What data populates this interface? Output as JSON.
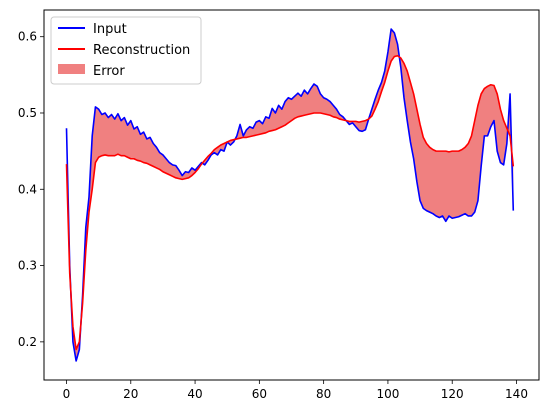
{
  "chart_data": {
    "type": "area",
    "title": "",
    "xlabel": "",
    "ylabel": "",
    "xlim": [
      -7,
      147
    ],
    "ylim": [
      0.15,
      0.635
    ],
    "xticks": [
      0,
      20,
      40,
      60,
      80,
      100,
      120,
      140
    ],
    "yticks": [
      0.2,
      0.3,
      0.4,
      0.5,
      0.6
    ],
    "x": [
      0,
      1,
      2,
      3,
      4,
      5,
      6,
      7,
      8,
      9,
      10,
      11,
      12,
      13,
      14,
      15,
      16,
      17,
      18,
      19,
      20,
      21,
      22,
      23,
      24,
      25,
      26,
      27,
      28,
      29,
      30,
      31,
      32,
      33,
      34,
      35,
      36,
      37,
      38,
      39,
      40,
      41,
      42,
      43,
      44,
      45,
      46,
      47,
      48,
      49,
      50,
      51,
      52,
      53,
      54,
      55,
      56,
      57,
      58,
      59,
      60,
      61,
      62,
      63,
      64,
      65,
      66,
      67,
      68,
      69,
      70,
      71,
      72,
      73,
      74,
      75,
      76,
      77,
      78,
      79,
      80,
      81,
      82,
      83,
      84,
      85,
      86,
      87,
      88,
      89,
      90,
      91,
      92,
      93,
      94,
      95,
      96,
      97,
      98,
      99,
      100,
      101,
      102,
      103,
      104,
      105,
      106,
      107,
      108,
      109,
      110,
      111,
      112,
      113,
      114,
      115,
      116,
      117,
      118,
      119,
      120,
      121,
      122,
      123,
      124,
      125,
      126,
      127,
      128,
      129,
      130,
      131,
      132,
      133,
      134,
      135,
      136,
      137,
      138,
      139
    ],
    "series": [
      {
        "name": "Input",
        "color": "#0000ff",
        "values": [
          0.48,
          0.3,
          0.2,
          0.175,
          0.19,
          0.26,
          0.35,
          0.39,
          0.47,
          0.508,
          0.505,
          0.498,
          0.5,
          0.494,
          0.498,
          0.492,
          0.499,
          0.49,
          0.494,
          0.484,
          0.49,
          0.479,
          0.482,
          0.472,
          0.475,
          0.466,
          0.468,
          0.46,
          0.455,
          0.448,
          0.445,
          0.44,
          0.435,
          0.432,
          0.431,
          0.425,
          0.418,
          0.423,
          0.422,
          0.428,
          0.425,
          0.43,
          0.435,
          0.432,
          0.438,
          0.445,
          0.448,
          0.445,
          0.452,
          0.45,
          0.462,
          0.458,
          0.462,
          0.47,
          0.485,
          0.47,
          0.478,
          0.482,
          0.48,
          0.488,
          0.49,
          0.486,
          0.495,
          0.493,
          0.506,
          0.5,
          0.51,
          0.505,
          0.515,
          0.52,
          0.518,
          0.522,
          0.526,
          0.522,
          0.53,
          0.525,
          0.532,
          0.538,
          0.535,
          0.525,
          0.52,
          0.518,
          0.515,
          0.51,
          0.505,
          0.498,
          0.495,
          0.49,
          0.485,
          0.487,
          0.482,
          0.477,
          0.476,
          0.478,
          0.492,
          0.505,
          0.518,
          0.53,
          0.54,
          0.555,
          0.58,
          0.61,
          0.605,
          0.59,
          0.56,
          0.52,
          0.49,
          0.462,
          0.44,
          0.41,
          0.385,
          0.375,
          0.372,
          0.37,
          0.368,
          0.365,
          0.363,
          0.365,
          0.358,
          0.365,
          0.362,
          0.363,
          0.364,
          0.366,
          0.368,
          0.365,
          0.365,
          0.37,
          0.385,
          0.43,
          0.47,
          0.47,
          0.482,
          0.49,
          0.45,
          0.435,
          0.432,
          0.46,
          0.525,
          0.372
        ]
      },
      {
        "name": "Reconstruction",
        "color": "#ff0000",
        "values": [
          0.433,
          0.29,
          0.22,
          0.19,
          0.2,
          0.25,
          0.32,
          0.37,
          0.4,
          0.435,
          0.442,
          0.444,
          0.445,
          0.444,
          0.444,
          0.444,
          0.446,
          0.444,
          0.444,
          0.442,
          0.44,
          0.44,
          0.438,
          0.437,
          0.435,
          0.434,
          0.432,
          0.43,
          0.428,
          0.426,
          0.423,
          0.421,
          0.419,
          0.417,
          0.415,
          0.414,
          0.413,
          0.414,
          0.415,
          0.418,
          0.422,
          0.427,
          0.433,
          0.438,
          0.443,
          0.447,
          0.452,
          0.455,
          0.458,
          0.46,
          0.462,
          0.464,
          0.465,
          0.466,
          0.467,
          0.468,
          0.468,
          0.469,
          0.47,
          0.471,
          0.472,
          0.473,
          0.474,
          0.476,
          0.477,
          0.478,
          0.48,
          0.482,
          0.484,
          0.487,
          0.49,
          0.493,
          0.495,
          0.496,
          0.497,
          0.498,
          0.499,
          0.5,
          0.5,
          0.5,
          0.499,
          0.498,
          0.497,
          0.495,
          0.494,
          0.492,
          0.491,
          0.49,
          0.489,
          0.489,
          0.489,
          0.488,
          0.489,
          0.49,
          0.492,
          0.496,
          0.505,
          0.515,
          0.528,
          0.54,
          0.555,
          0.568,
          0.574,
          0.575,
          0.572,
          0.565,
          0.555,
          0.54,
          0.525,
          0.505,
          0.485,
          0.468,
          0.46,
          0.455,
          0.452,
          0.45,
          0.45,
          0.45,
          0.45,
          0.449,
          0.45,
          0.45,
          0.45,
          0.452,
          0.455,
          0.46,
          0.47,
          0.49,
          0.51,
          0.525,
          0.532,
          0.535,
          0.537,
          0.536,
          0.525,
          0.505,
          0.49,
          0.48,
          0.47,
          0.43
        ]
      }
    ],
    "fill": {
      "name": "Error",
      "color": "#f08080",
      "between": [
        "Input",
        "Reconstruction"
      ]
    },
    "legend": {
      "position": "upper-left",
      "entries": [
        {
          "label": "Input",
          "color": "#0000ff",
          "kind": "line"
        },
        {
          "label": "Reconstruction",
          "color": "#ff0000",
          "kind": "line"
        },
        {
          "label": "Error",
          "color": "#f08080",
          "kind": "patch"
        }
      ]
    }
  }
}
